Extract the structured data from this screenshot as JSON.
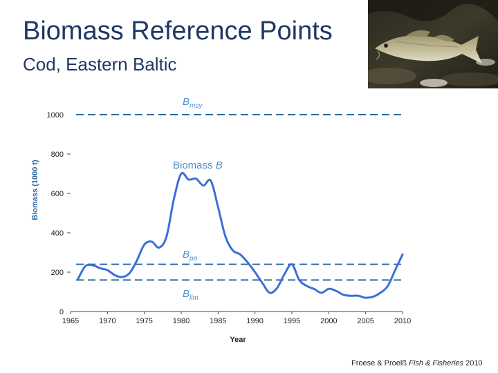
{
  "slide": {
    "title": "Biomass Reference Points",
    "subtitle": "Cod, Eastern Baltic"
  },
  "source": {
    "authors": "Froese & Proelß",
    "journal": "Fish & Fisheries",
    "year": "2010"
  },
  "colors": {
    "title": "#1f3864",
    "series": "#3a6fd8",
    "reference": "#2a6aa5",
    "label": "#4a8fcf"
  },
  "chart_data": {
    "type": "line",
    "xlabel": "Year",
    "ylabel": "Biomass (1000 t)",
    "xlim": [
      1965,
      2010
    ],
    "ylim": [
      0,
      1000
    ],
    "xticks": [
      1965,
      1970,
      1975,
      1980,
      1985,
      1990,
      1995,
      2000,
      2005,
      2010
    ],
    "yticks": [
      0,
      200,
      400,
      600,
      800,
      1000
    ],
    "ytick_labels": [
      "0",
      "200",
      "400",
      "600",
      "800",
      "1000"
    ],
    "series": [
      {
        "name": "Biomass B",
        "x": [
          1966,
          1967,
          1968,
          1969,
          1970,
          1971,
          1972,
          1973,
          1974,
          1975,
          1976,
          1977,
          1978,
          1979,
          1980,
          1981,
          1982,
          1983,
          1984,
          1985,
          1986,
          1987,
          1988,
          1989,
          1990,
          1991,
          1992,
          1993,
          1994,
          1995,
          1996,
          1997,
          1998,
          1999,
          2000,
          2001,
          2002,
          2003,
          2004,
          2005,
          2006,
          2007,
          2008,
          2009,
          2010
        ],
        "y": [
          165,
          230,
          235,
          220,
          210,
          185,
          175,
          195,
          260,
          340,
          355,
          325,
          380,
          570,
          700,
          670,
          675,
          640,
          665,
          530,
          380,
          310,
          290,
          250,
          200,
          145,
          95,
          120,
          190,
          240,
          160,
          130,
          115,
          95,
          115,
          105,
          85,
          80,
          80,
          70,
          75,
          95,
          130,
          210,
          290
        ]
      }
    ],
    "reference_lines": [
      {
        "name": "Bmsy",
        "value": 1000
      },
      {
        "name": "Bpa",
        "value": 240
      },
      {
        "name": "Blim",
        "value": 160
      }
    ],
    "annotations": [
      {
        "label": "B",
        "sub": "msy"
      },
      {
        "label": "Biomass ",
        "italic": "B"
      },
      {
        "label": "B",
        "sub": "pa"
      },
      {
        "label": "B",
        "sub": "lim"
      }
    ]
  }
}
